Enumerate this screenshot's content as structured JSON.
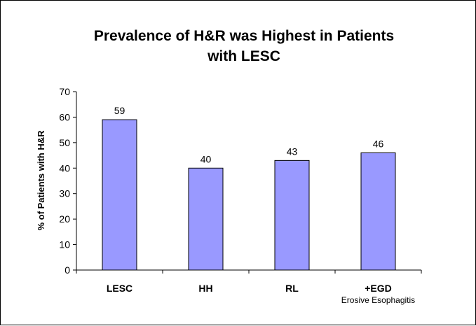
{
  "chart_data": {
    "type": "bar",
    "title_lines": [
      "Prevalence of H&R was Highest in Patients",
      "with LESC"
    ],
    "ylabel": "% of Patients with H&R",
    "xlabel": "",
    "categories": [
      "LESC",
      "HH",
      "RL",
      "+EGD"
    ],
    "category_sublabels": [
      "",
      "",
      "",
      "Erosive Esophagitis"
    ],
    "values": [
      59,
      40,
      43,
      46
    ],
    "data_labels": [
      "59",
      "40",
      "43",
      "46"
    ],
    "ylim": [
      0,
      70
    ],
    "yticks": [
      0,
      10,
      20,
      30,
      40,
      50,
      60,
      70
    ],
    "grid": false,
    "legend": "none",
    "bar_color": "#9999ff",
    "bar_edge_color": "#000000"
  }
}
